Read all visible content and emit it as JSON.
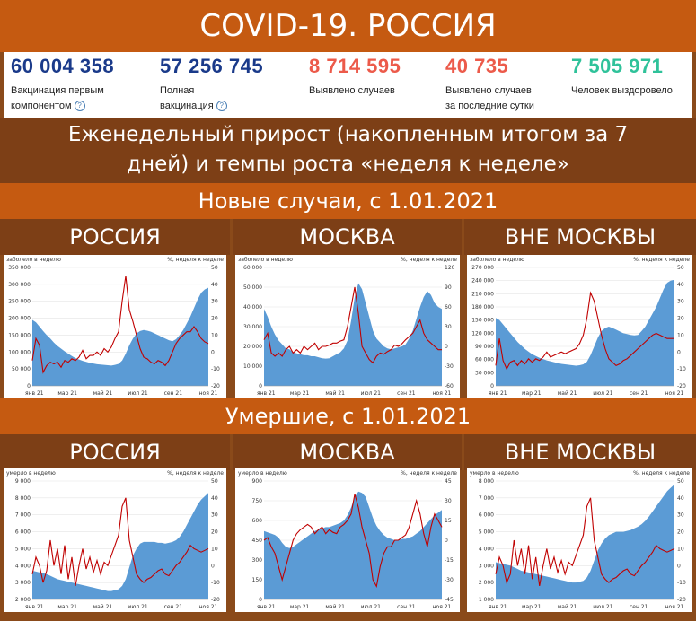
{
  "title": "COVID-19. РОССИЯ",
  "stats": [
    {
      "value": "60 004 358",
      "label_lines": [
        "Вакцинация первым",
        "компонентом"
      ],
      "help": true,
      "color": "#1a3a8a"
    },
    {
      "value": "57 256 745",
      "label_lines": [
        "Полная",
        "вакцинация"
      ],
      "help": true,
      "color": "#1a3a8a"
    },
    {
      "value": "8 714 595",
      "label_lines": [
        "Выявлено случаев"
      ],
      "help": false,
      "color": "#ec5a4a"
    },
    {
      "value": "40 735",
      "label_lines": [
        "Выявлено случаев",
        "за последние сутки"
      ],
      "help": false,
      "color": "#ec5a4a"
    },
    {
      "value": "7 505 971",
      "label_lines": [
        "Человек выздоровело"
      ],
      "help": false,
      "color": "#2fc29a"
    }
  ],
  "help_glyph": "?",
  "weekly_heading_lines": [
    "Еженедельный прирост (накопленным итогом за 7",
    "дней) и темпы роста «неделя к неделе»"
  ],
  "cases_section": "Новые случаи, с 1.01.2021",
  "deaths_section": "Умершие, с 1.01.2021",
  "region_labels": [
    "РОССИЯ",
    "МОСКВА",
    "ВНЕ МОСКВЫ"
  ],
  "colors": {
    "area": "#5b9bd5",
    "line": "#c00000"
  },
  "cases_charts": [
    {
      "left_title": "заболело в неделю",
      "right_title": "%, неделя к неделе",
      "left_ticks": [
        "350 000",
        "300 000",
        "250 000",
        "200 000",
        "150 000",
        "100 000",
        "50 000",
        "0"
      ],
      "right_ticks": [
        "50",
        "40",
        "30",
        "20",
        "10",
        "0",
        "-10",
        "-20"
      ],
      "x_ticks": [
        "янв 21",
        "мар 21",
        "май 21",
        "июл 21",
        "сен 21",
        "ноя 21"
      ],
      "chart_data": {
        "type": "area",
        "ylim": [
          0,
          350000
        ],
        "y2lim": [
          -20,
          50
        ],
        "series": [
          {
            "values": [
              195000,
              188000,
              175000,
              162000,
              150000,
              140000,
              128000,
              118000,
              110000,
              102000,
              95000,
              88000,
              82000,
              78000,
              74000,
              71000,
              68000,
              66000,
              64000,
              63000,
              62000,
              61000,
              60000,
              62000,
              65000,
              75000,
              95000,
              120000,
              140000,
              155000,
              162000,
              165000,
              163000,
              160000,
              155000,
              150000,
              145000,
              140000,
              135000,
              132000,
              138000,
              150000,
              165000,
              185000,
              205000,
              230000,
              255000,
              275000,
              285000,
              290000
            ]
          },
          {
            "values": [
              -5,
              8,
              4,
              -12,
              -8,
              -6,
              -7,
              -6,
              -9,
              -5,
              -6,
              -4,
              -5,
              -3,
              1,
              -4,
              -2,
              -2,
              0,
              -2,
              2,
              0,
              3,
              8,
              12,
              30,
              45,
              25,
              18,
              10,
              2,
              -3,
              -4,
              -6,
              -7,
              -5,
              -6,
              -8,
              -5,
              0,
              5,
              8,
              10,
              12,
              12,
              15,
              12,
              8,
              6,
              5
            ]
          }
        ]
      }
    },
    {
      "left_title": "заболело в неделю",
      "right_title": "%, неделя к неделе",
      "left_ticks": [
        "60 000",
        "50 000",
        "40 000",
        "30 000",
        "20 000",
        "10 000",
        "0"
      ],
      "right_ticks": [
        "120",
        "90",
        "60",
        "30",
        "0",
        "-30",
        "-60"
      ],
      "x_ticks": [
        "янв 21",
        "мар 21",
        "май 21",
        "июл 21",
        "сен 21",
        "ноя 21"
      ],
      "chart_data": {
        "type": "area",
        "ylim": [
          0,
          60000
        ],
        "y2lim": [
          -60,
          120
        ],
        "series": [
          {
            "values": [
              39000,
              35000,
              30000,
              26000,
              23000,
              21000,
              19000,
              18500,
              17000,
              16500,
              16000,
              15500,
              15500,
              15000,
              15000,
              14500,
              14000,
              13800,
              14000,
              15000,
              16000,
              17000,
              19000,
              23000,
              33000,
              45000,
              52000,
              49000,
              42000,
              35000,
              28000,
              24000,
              22000,
              20000,
              19000,
              18500,
              19000,
              19500,
              20000,
              21000,
              24000,
              28000,
              34000,
              40000,
              45000,
              48000,
              46000,
              42000,
              40000,
              39000
            ]
          },
          {
            "values": [
              10,
              20,
              -10,
              -15,
              -10,
              -15,
              -5,
              0,
              -10,
              -5,
              -10,
              0,
              -5,
              0,
              5,
              -5,
              0,
              0,
              2,
              5,
              5,
              8,
              10,
              30,
              60,
              90,
              50,
              0,
              -10,
              -20,
              -25,
              -15,
              -10,
              -12,
              -8,
              -5,
              2,
              0,
              4,
              10,
              15,
              20,
              30,
              40,
              20,
              10,
              5,
              0,
              -5,
              -5
            ]
          }
        ]
      }
    },
    {
      "left_title": "заболело в неделю",
      "right_title": "%, неделя к неделе",
      "left_ticks": [
        "270 000",
        "240 000",
        "210 000",
        "180 000",
        "150 000",
        "120 000",
        "90 000",
        "60 000",
        "30 000",
        "0"
      ],
      "right_ticks": [
        "50",
        "40",
        "30",
        "20",
        "10",
        "0",
        "-10",
        "-20"
      ],
      "x_ticks": [
        "янв 21",
        "мар 21",
        "май 21",
        "июл 21",
        "сен 21",
        "ноя 21"
      ],
      "chart_data": {
        "type": "area",
        "ylim": [
          0,
          270000
        ],
        "y2lim": [
          -20,
          50
        ],
        "series": [
          {
            "values": [
              155000,
              150000,
              140000,
              130000,
              120000,
              110000,
              100000,
              92000,
              84000,
              78000,
              72000,
              68000,
              64000,
              61000,
              58000,
              56000,
              54000,
              52000,
              50000,
              49000,
              48000,
              47000,
              46000,
              47000,
              49000,
              55000,
              70000,
              90000,
              110000,
              125000,
              132000,
              135000,
              132000,
              128000,
              124000,
              120000,
              118000,
              116000,
              115000,
              116000,
              125000,
              135000,
              150000,
              165000,
              180000,
              200000,
              220000,
              235000,
              240000,
              242000
            ]
          },
          {
            "values": [
              -8,
              8,
              -5,
              -10,
              -6,
              -5,
              -8,
              -5,
              -7,
              -4,
              -6,
              -4,
              -5,
              -3,
              0,
              -3,
              -2,
              -1,
              0,
              -1,
              0,
              1,
              2,
              5,
              10,
              20,
              35,
              30,
              20,
              10,
              2,
              -4,
              -6,
              -8,
              -7,
              -5,
              -4,
              -2,
              0,
              2,
              4,
              6,
              8,
              10,
              11,
              10,
              9,
              8,
              8,
              8
            ]
          }
        ]
      }
    }
  ],
  "deaths_charts": [
    {
      "left_title": "умерло в неделю",
      "right_title": "%, неделя к неделе",
      "left_ticks": [
        "9 000",
        "8 000",
        "7 000",
        "6 000",
        "5 000",
        "4 000",
        "3 000",
        "2 000"
      ],
      "right_ticks": [
        "50",
        "40",
        "30",
        "20",
        "10",
        "0",
        "-10",
        "-20"
      ],
      "x_ticks": [
        "янв 21",
        "мар 21",
        "май 21",
        "июл 21",
        "сен 21",
        "ноя 21"
      ],
      "chart_data": {
        "type": "area",
        "ylim": [
          2000,
          9000
        ],
        "y2lim": [
          -20,
          50
        ],
        "series": [
          {
            "values": [
              3700,
              3650,
              3600,
              3550,
              3500,
              3400,
              3300,
              3200,
              3150,
              3100,
              3050,
              3000,
              2950,
              2900,
              2850,
              2800,
              2750,
              2700,
              2650,
              2600,
              2550,
              2500,
              2500,
              2550,
              2600,
              2800,
              3200,
              3900,
              4600,
              5000,
              5300,
              5400,
              5400,
              5400,
              5400,
              5350,
              5350,
              5300,
              5350,
              5400,
              5500,
              5700,
              6000,
              6400,
              6800,
              7200,
              7600,
              7900,
              8100,
              8300
            ]
          },
          {
            "values": [
              -5,
              5,
              0,
              -10,
              -3,
              15,
              0,
              10,
              -5,
              12,
              -8,
              5,
              -12,
              0,
              10,
              -2,
              5,
              -4,
              3,
              -5,
              2,
              0,
              6,
              12,
              18,
              35,
              40,
              15,
              5,
              -5,
              -8,
              -10,
              -8,
              -7,
              -5,
              -3,
              -2,
              -5,
              -6,
              -3,
              0,
              2,
              5,
              8,
              12,
              10,
              9,
              8,
              9,
              10
            ]
          }
        ]
      }
    },
    {
      "left_title": "умерло в неделю",
      "right_title": "%, неделя к неделе",
      "left_ticks": [
        "900",
        "750",
        "600",
        "450",
        "300",
        "150",
        "0"
      ],
      "right_ticks": [
        "45",
        "30",
        "15",
        "0",
        "-15",
        "-30",
        "-45"
      ],
      "x_ticks": [
        "янв 21",
        "мар 21",
        "май 21",
        "июл 21",
        "сен 21",
        "ноя 21"
      ],
      "chart_data": {
        "type": "area",
        "ylim": [
          0,
          900
        ],
        "y2lim": [
          -45,
          45
        ],
        "series": [
          {
            "values": [
              520,
              510,
              500,
              490,
              470,
              430,
              400,
              390,
              400,
              420,
              440,
              460,
              480,
              500,
              520,
              530,
              540,
              550,
              550,
              560,
              570,
              580,
              600,
              640,
              700,
              780,
              820,
              810,
              780,
              700,
              620,
              560,
              520,
              490,
              470,
              460,
              450,
              450,
              460,
              460,
              470,
              480,
              500,
              520,
              550,
              580,
              610,
              640,
              660,
              680
            ]
          },
          {
            "values": [
              0,
              2,
              -5,
              -10,
              -20,
              -30,
              -20,
              -10,
              0,
              5,
              8,
              10,
              12,
              10,
              5,
              8,
              10,
              5,
              8,
              6,
              5,
              10,
              12,
              15,
              20,
              35,
              25,
              10,
              0,
              -10,
              -30,
              -35,
              -20,
              -10,
              -5,
              -5,
              0,
              0,
              2,
              4,
              10,
              20,
              30,
              20,
              5,
              -5,
              10,
              20,
              15,
              10
            ]
          }
        ]
      }
    },
    {
      "left_title": "умерло в неделю",
      "right_title": "%, неделя к неделе",
      "left_ticks": [
        "8 000",
        "7 000",
        "6 000",
        "5 000",
        "4 000",
        "3 000",
        "2 000",
        "1 000"
      ],
      "right_ticks": [
        "50",
        "40",
        "30",
        "20",
        "10",
        "0",
        "-10",
        "-20"
      ],
      "x_ticks": [
        "янв 21",
        "мар 21",
        "май 21",
        "июл 21",
        "сен 21",
        "ноя 21"
      ],
      "chart_data": {
        "type": "area",
        "ylim": [
          1000,
          8000
        ],
        "y2lim": [
          -20,
          50
        ],
        "series": [
          {
            "values": [
              3200,
              3150,
              3100,
              3050,
              3000,
              2900,
              2800,
              2700,
              2650,
              2600,
              2550,
              2500,
              2450,
              2400,
              2350,
              2300,
              2250,
              2200,
              2150,
              2100,
              2050,
              2000,
              2000,
              2050,
              2100,
              2300,
              2700,
              3300,
              3900,
              4300,
              4600,
              4800,
              4900,
              5000,
              5000,
              5000,
              5050,
              5100,
              5200,
              5300,
              5450,
              5650,
              5900,
              6200,
              6500,
              6800,
              7100,
              7400,
              7600,
              7800
            ]
          },
          {
            "values": [
              -5,
              5,
              0,
              -10,
              -5,
              15,
              0,
              10,
              -5,
              12,
              -8,
              5,
              -12,
              0,
              10,
              -2,
              5,
              -4,
              3,
              -5,
              2,
              0,
              6,
              12,
              18,
              35,
              40,
              15,
              5,
              -5,
              -8,
              -10,
              -8,
              -7,
              -5,
              -3,
              -2,
              -5,
              -6,
              -3,
              0,
              2,
              5,
              8,
              12,
              10,
              9,
              8,
              9,
              10
            ]
          }
        ]
      }
    }
  ]
}
